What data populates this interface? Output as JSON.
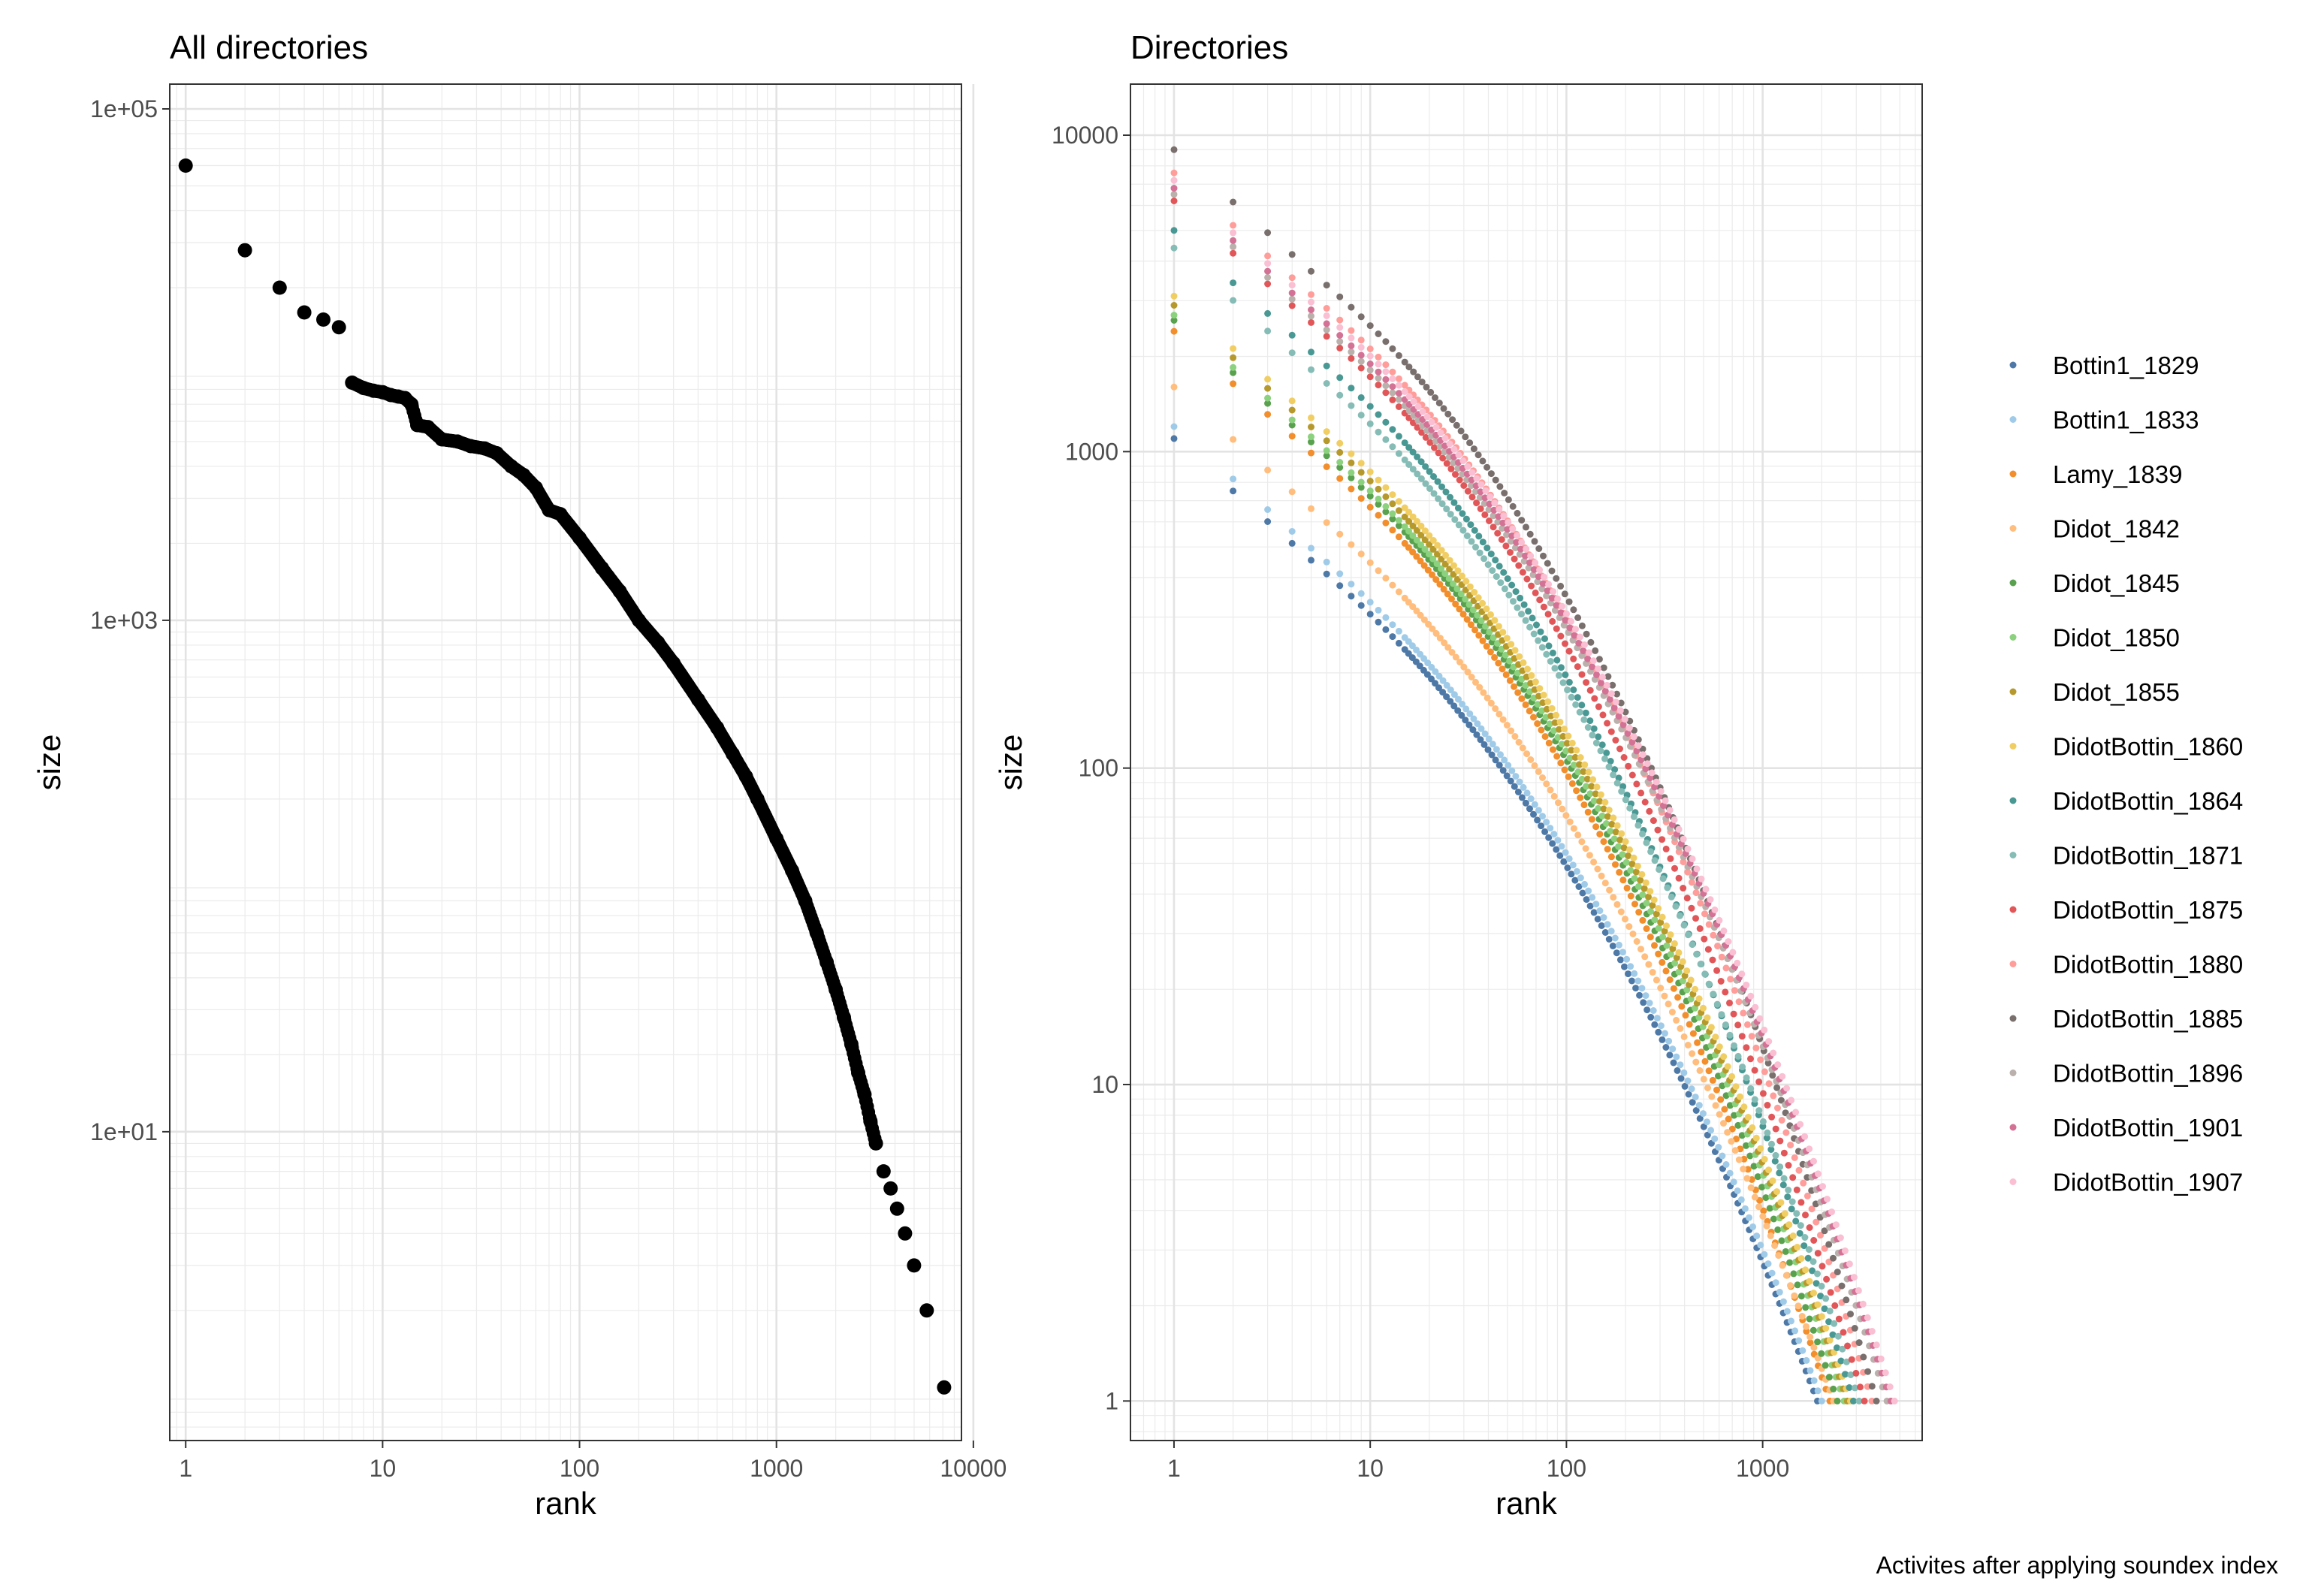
{
  "caption": "Activites after applying soundex index",
  "chart_data": [
    {
      "type": "scatter",
      "title": "All directories",
      "xlabel": "rank",
      "ylabel": "size",
      "x_scale": "log10",
      "y_scale": "log10",
      "xlim": [
        0.83,
        8700
      ],
      "ylim": [
        0.62,
        125000
      ],
      "x_ticks": [
        1,
        10,
        100,
        1000,
        10000
      ],
      "x_tick_labels": [
        "1",
        "10",
        "100",
        "1000",
        "10000"
      ],
      "y_ticks": [
        10,
        1000,
        100000
      ],
      "y_tick_labels": [
        "1e+01",
        "1e+03",
        "1e+05"
      ],
      "grid": true,
      "point_color": "#000000",
      "series": [
        {
          "x": [
            1,
            2,
            3,
            4,
            5,
            6,
            7,
            8,
            9,
            10,
            11,
            12,
            13,
            14,
            15,
            17,
            20,
            24,
            28,
            33,
            38,
            45,
            52,
            60,
            70,
            80,
            100,
            130,
            160,
            200,
            250,
            300,
            400,
            500,
            600,
            700,
            800,
            1000,
            1200,
            1400,
            1600,
            1800,
            2000,
            2200,
            2400,
            2600,
            2800,
            3000,
            3200,
            3500,
            3800,
            4100,
            4500,
            5000,
            5800,
            7100
          ],
          "y": [
            60000,
            28000,
            20000,
            16000,
            15000,
            14000,
            8500,
            8100,
            7900,
            7800,
            7600,
            7500,
            7400,
            7000,
            5800,
            5700,
            5100,
            5000,
            4800,
            4700,
            4500,
            4000,
            3700,
            3300,
            2700,
            2600,
            2100,
            1600,
            1300,
            1000,
            820,
            680,
            490,
            380,
            300,
            245,
            200,
            140,
            105,
            80,
            60,
            46,
            36,
            28,
            22,
            17,
            14,
            11,
            9,
            7,
            6,
            5,
            4,
            3,
            2,
            1
          ]
        }
      ]
    },
    {
      "type": "scatter",
      "title": "Directories",
      "xlabel": "rank",
      "ylabel": "size",
      "x_scale": "log10",
      "y_scale": "log10",
      "xlim": [
        0.6,
        6500
      ],
      "ylim": [
        0.75,
        14500
      ],
      "x_ticks": [
        1,
        10,
        100,
        1000
      ],
      "x_tick_labels": [
        "1",
        "10",
        "100",
        "1000"
      ],
      "y_ticks": [
        1,
        10,
        100,
        1000,
        10000
      ],
      "y_tick_labels": [
        "1",
        "10",
        "100",
        "1000",
        "10000"
      ],
      "grid": true,
      "legend_position": "right",
      "series": [
        {
          "name": "Bottin1_1829",
          "color": "#4e79a7",
          "max": 1100,
          "n": 1900
        },
        {
          "name": "Bottin1_1833",
          "color": "#a0cbe8",
          "max": 1200,
          "n": 2000
        },
        {
          "name": "Lamy_1839",
          "color": "#f28e2b",
          "max": 2400,
          "n": 2200
        },
        {
          "name": "Didot_1842",
          "color": "#ffbe7d",
          "max": 1600,
          "n": 2300
        },
        {
          "name": "Didot_1845",
          "color": "#59a14f",
          "max": 2600,
          "n": 2400
        },
        {
          "name": "Didot_1850",
          "color": "#8cd17d",
          "max": 2700,
          "n": 2600
        },
        {
          "name": "Didot_1855",
          "color": "#b6992d",
          "max": 2900,
          "n": 2700
        },
        {
          "name": "DidotBottin_1860",
          "color": "#f1ce63",
          "max": 3100,
          "n": 2800
        },
        {
          "name": "DidotBottin_1864",
          "color": "#499894",
          "max": 5000,
          "n": 2900
        },
        {
          "name": "DidotBottin_1871",
          "color": "#86bcb6",
          "max": 4400,
          "n": 3100
        },
        {
          "name": "DidotBottin_1875",
          "color": "#e15759",
          "max": 6200,
          "n": 3300
        },
        {
          "name": "DidotBottin_1880",
          "color": "#ff9d9a",
          "max": 7600,
          "n": 3600
        },
        {
          "name": "DidotBottin_1885",
          "color": "#79706e",
          "max": 9000,
          "n": 3800
        },
        {
          "name": "DidotBottin_1896",
          "color": "#bab0ac",
          "max": 6500,
          "n": 4300
        },
        {
          "name": "DidotBottin_1901",
          "color": "#d37295",
          "max": 6800,
          "n": 4500
        },
        {
          "name": "DidotBottin_1907",
          "color": "#fabfd2",
          "max": 7200,
          "n": 4700
        }
      ]
    }
  ]
}
